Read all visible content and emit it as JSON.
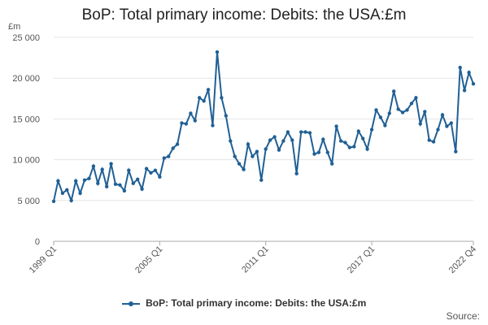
{
  "title": "BoP: Total primary income: Debits: the USA:£m",
  "source_label": "Source:",
  "colors": {
    "series": "#206095",
    "grid": "#e5e5e5",
    "axis": "#aaaaaa"
  },
  "chart_data": {
    "type": "line",
    "title": "BoP: Total primary income: Debits: the USA:£m",
    "ylabel": "£m",
    "ylim": [
      0,
      25000
    ],
    "y_ticks": [
      0,
      5000,
      10000,
      15000,
      20000,
      25000
    ],
    "y_tick_labels": [
      "0",
      "5 000",
      "10 000",
      "15 000",
      "20 000",
      "25 000"
    ],
    "x_tick_labels": [
      "1999 Q1",
      "2005 Q1",
      "2011 Q1",
      "2017 Q1",
      "2022 Q4"
    ],
    "grid": true,
    "legend_position": "bottom",
    "x_start": "1999 Q1",
    "x_end": "2022 Q4",
    "series": [
      {
        "name": "BoP: Total primary income: Debits: the USA:£m",
        "values": [
          4900,
          7400,
          5900,
          6300,
          5000,
          7400,
          5900,
          7500,
          7700,
          9200,
          7100,
          8800,
          6700,
          9500,
          7000,
          6900,
          6200,
          8700,
          7100,
          7600,
          6400,
          8900,
          8400,
          8700,
          7900,
          10200,
          10400,
          11400,
          11900,
          14500,
          14400,
          15700,
          14800,
          17600,
          17200,
          18600,
          14200,
          23200,
          17600,
          15400,
          12300,
          10400,
          9500,
          8800,
          11900,
          10400,
          11000,
          7500,
          11300,
          12400,
          12800,
          11200,
          12300,
          13400,
          12400,
          8300,
          13400,
          13400,
          13300,
          10700,
          10900,
          12500,
          10900,
          9500,
          14100,
          12300,
          12100,
          11500,
          11600,
          13500,
          12600,
          11300,
          13700,
          16100,
          15200,
          14200,
          15700,
          18400,
          16200,
          15800,
          16100,
          16900,
          17600,
          14400,
          15900,
          12400,
          12200,
          13700,
          15500,
          14100,
          14500,
          11000,
          21300,
          18500,
          20700,
          19300
        ]
      }
    ]
  }
}
